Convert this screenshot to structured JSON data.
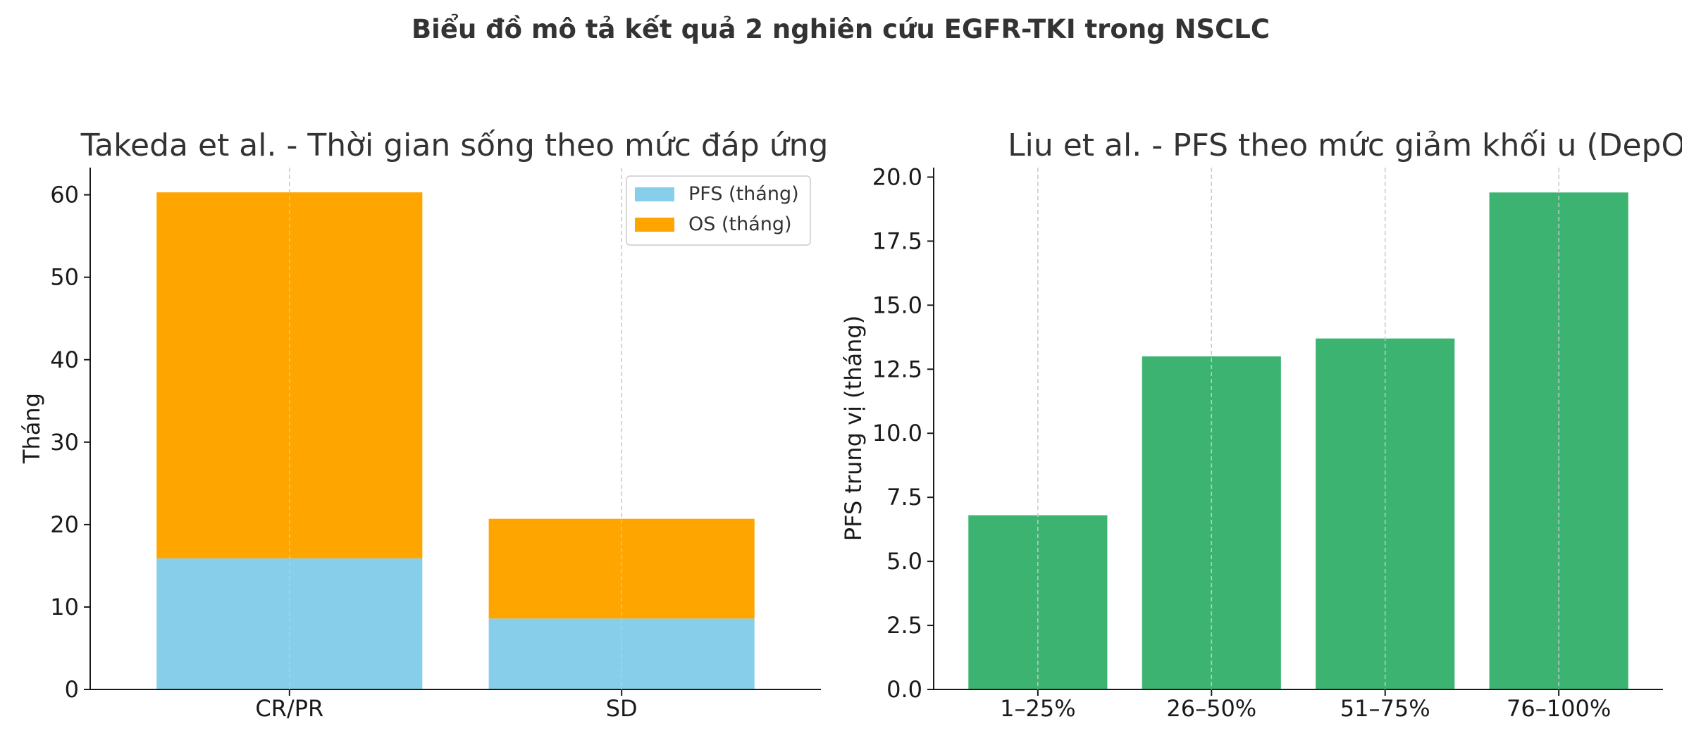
{
  "figure": {
    "suptitle": "Biểu đồ mô tả kết quả 2 nghiên cứu EGFR-TKI trong NSCLC"
  },
  "chart_data": [
    {
      "type": "bar",
      "stacked": true,
      "title": "Takeda et al. - Thời gian sống theo mức đáp ứng",
      "xlabel": "",
      "ylabel": "Tháng",
      "categories": [
        "CR/PR",
        "SD"
      ],
      "series": [
        {
          "name": "PFS (tháng)",
          "values": [
            15.9,
            8.6
          ],
          "color": "#87CEEB"
        },
        {
          "name": "OS (tháng)",
          "values": [
            44.4,
            12.1
          ],
          "color": "#FFA500"
        }
      ],
      "ylim": [
        0,
        63.3
      ],
      "yticks": [
        0,
        10,
        20,
        30,
        40,
        50,
        60
      ],
      "ytick_labels": [
        "0",
        "10",
        "20",
        "30",
        "40",
        "50",
        "60"
      ],
      "grid": "x-dashed",
      "legend_position": "top-right"
    },
    {
      "type": "bar",
      "title": "Liu et al. - PFS theo mức giảm khối u (DepOR)",
      "xlabel": "",
      "ylabel": "PFS trung vị (tháng)",
      "categories": [
        "1–25%",
        "26–50%",
        "51–75%",
        "76–100%"
      ],
      "series": [
        {
          "values": [
            6.8,
            13.0,
            13.7,
            19.4
          ],
          "color": "#3CB371"
        }
      ],
      "ylim": [
        0,
        20.37
      ],
      "yticks": [
        0,
        2.5,
        5,
        7.5,
        10,
        12.5,
        15,
        17.5,
        20
      ],
      "ytick_labels": [
        "0.0",
        "2.5",
        "5.0",
        "7.5",
        "10.0",
        "12.5",
        "15.0",
        "17.5",
        "20.0"
      ],
      "grid": "x-dashed"
    }
  ]
}
